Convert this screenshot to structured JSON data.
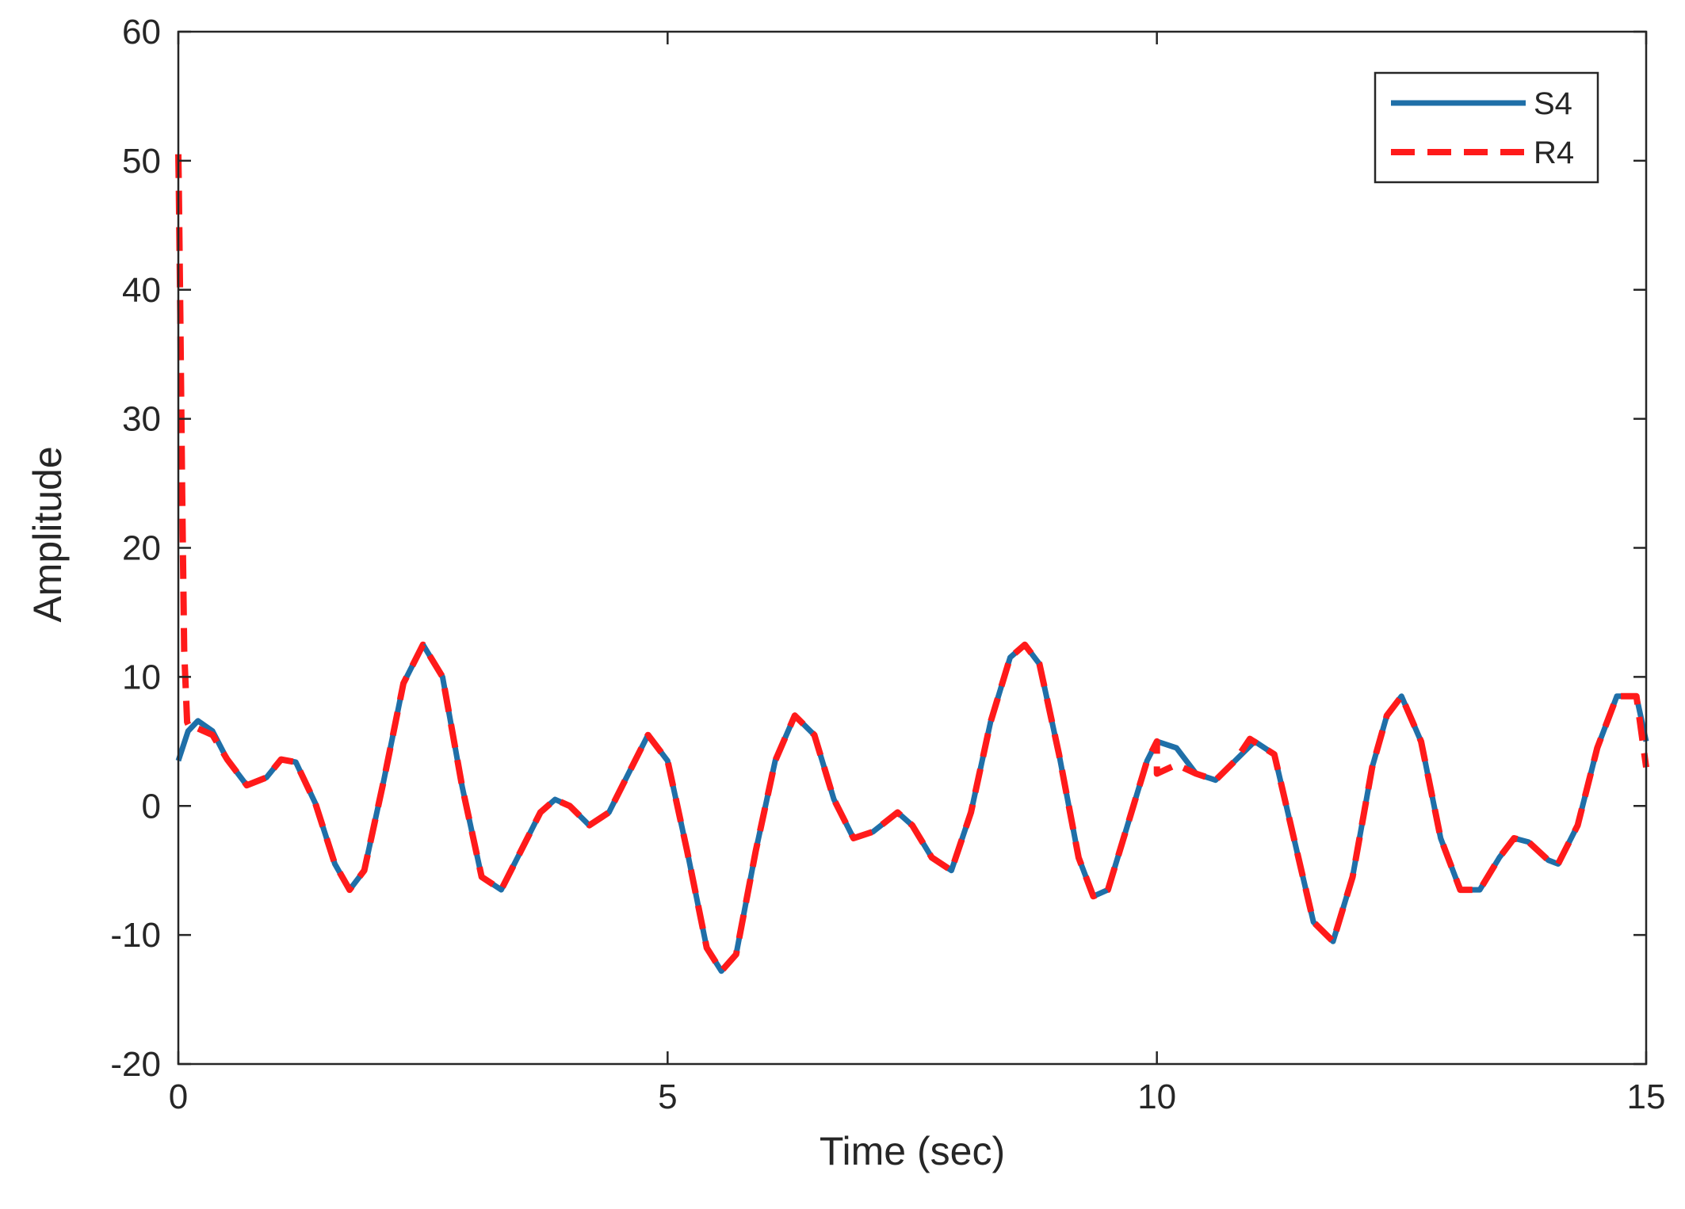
{
  "chart_data": {
    "type": "line",
    "title": "",
    "xlabel": "Time (sec)",
    "ylabel": "Amplitude",
    "xlim": [
      0,
      15
    ],
    "ylim": [
      -20,
      60
    ],
    "xticks": [
      0,
      5,
      10,
      15
    ],
    "yticks": [
      -20,
      -10,
      0,
      10,
      20,
      30,
      40,
      50,
      60
    ],
    "xtick_labels": [
      "0",
      "5",
      "10",
      "15"
    ],
    "ytick_labels": [
      "-20",
      "-10",
      "0",
      "10",
      "20",
      "30",
      "40",
      "50",
      "60"
    ],
    "grid": false,
    "legend_position": "top-right",
    "series": [
      {
        "name": "S4",
        "color": "#1f6fa8",
        "line_style": "solid",
        "x": [
          0,
          0.1,
          0.2,
          0.35,
          0.5,
          0.7,
          0.9,
          1.05,
          1.2,
          1.4,
          1.6,
          1.75,
          1.9,
          2.1,
          2.3,
          2.5,
          2.7,
          2.9,
          3.1,
          3.3,
          3.5,
          3.7,
          3.85,
          4.0,
          4.2,
          4.4,
          4.6,
          4.8,
          5.0,
          5.2,
          5.4,
          5.55,
          5.7,
          5.9,
          6.1,
          6.3,
          6.5,
          6.7,
          6.9,
          7.1,
          7.35,
          7.5,
          7.7,
          7.9,
          8.1,
          8.3,
          8.5,
          8.65,
          8.8,
          9.0,
          9.2,
          9.35,
          9.5,
          9.7,
          9.9,
          10.0,
          10.2,
          10.4,
          10.6,
          10.8,
          11.0,
          11.2,
          11.4,
          11.6,
          11.8,
          12.0,
          12.2,
          12.35,
          12.5,
          12.7,
          12.9,
          13.1,
          13.3,
          13.5,
          13.65,
          13.8,
          14.0,
          14.1,
          14.3,
          14.5,
          14.7,
          14.9,
          15.0
        ],
        "y": [
          3.5,
          5.8,
          6.6,
          5.8,
          3.6,
          1.6,
          2.2,
          3.6,
          3.4,
          0.2,
          -4.5,
          -6.5,
          -5.0,
          2.0,
          9.5,
          12.5,
          10.0,
          1.5,
          -5.5,
          -6.5,
          -3.5,
          -0.5,
          0.5,
          0.0,
          -1.5,
          -0.5,
          2.5,
          5.5,
          3.5,
          -3.5,
          -11.0,
          -12.8,
          -11.5,
          -3.5,
          3.5,
          7.0,
          5.5,
          0.5,
          -2.5,
          -2.0,
          -0.5,
          -1.5,
          -4.0,
          -5.0,
          -0.5,
          6.5,
          11.5,
          12.5,
          11.0,
          4.0,
          -4.0,
          -7.0,
          -6.5,
          -1.5,
          3.5,
          5.0,
          4.5,
          2.5,
          2.0,
          3.5,
          5.0,
          4.0,
          -2.5,
          -9.0,
          -10.5,
          -5.5,
          3.0,
          7.0,
          8.5,
          5.0,
          -2.5,
          -6.5,
          -6.5,
          -4.0,
          -2.5,
          -2.8,
          -4.2,
          -4.5,
          -1.5,
          4.5,
          8.5,
          8.5,
          5.0
        ]
      },
      {
        "name": "R4",
        "color": "#ff1a1a",
        "line_style": "dashed",
        "x": [
          0,
          0.005,
          0.02,
          0.04,
          0.06,
          0.09,
          0.12,
          0.2,
          0.35,
          0.5,
          0.7,
          0.9,
          1.05,
          1.2,
          1.4,
          1.6,
          1.75,
          1.9,
          2.1,
          2.3,
          2.5,
          2.7,
          2.9,
          3.1,
          3.3,
          3.5,
          3.7,
          3.85,
          4.0,
          4.2,
          4.4,
          4.6,
          4.8,
          5.0,
          5.2,
          5.4,
          5.55,
          5.7,
          5.9,
          6.1,
          6.3,
          6.5,
          6.7,
          6.9,
          7.1,
          7.35,
          7.5,
          7.7,
          7.9,
          8.1,
          8.3,
          8.5,
          8.65,
          8.8,
          9.0,
          9.2,
          9.35,
          9.5,
          9.7,
          9.9,
          10.0,
          10.0,
          10.2,
          10.4,
          10.6,
          10.8,
          10.95,
          11.2,
          11.4,
          11.6,
          11.8,
          12.0,
          12.2,
          12.35,
          12.5,
          12.7,
          12.9,
          13.1,
          13.3,
          13.5,
          13.65,
          13.8,
          14.0,
          14.1,
          14.3,
          14.5,
          14.7,
          14.9,
          15.0
        ],
        "y": [
          50.5,
          48,
          38,
          24,
          12,
          6.5,
          6.0,
          6.0,
          5.5,
          3.6,
          1.6,
          2.2,
          3.6,
          3.4,
          0.2,
          -4.5,
          -6.5,
          -5.0,
          2.0,
          9.5,
          12.5,
          10.0,
          1.5,
          -5.5,
          -6.5,
          -3.5,
          -0.5,
          0.5,
          0.0,
          -1.5,
          -0.5,
          2.5,
          5.5,
          3.5,
          -3.5,
          -11.0,
          -12.8,
          -11.5,
          -3.5,
          3.5,
          7.0,
          5.5,
          0.5,
          -2.5,
          -2.0,
          -0.5,
          -1.5,
          -4.0,
          -5.0,
          -0.5,
          6.5,
          11.5,
          12.5,
          11.0,
          4.0,
          -4.0,
          -7.0,
          -6.5,
          -1.5,
          3.5,
          5.0,
          2.5,
          3.2,
          2.5,
          2.0,
          3.5,
          5.2,
          4.0,
          -2.5,
          -9.0,
          -10.5,
          -5.5,
          3.0,
          7.0,
          8.5,
          5.0,
          -2.5,
          -6.5,
          -6.5,
          -4.0,
          -2.5,
          -2.8,
          -4.2,
          -4.5,
          -1.5,
          4.5,
          8.5,
          8.5,
          3.0
        ]
      }
    ]
  }
}
